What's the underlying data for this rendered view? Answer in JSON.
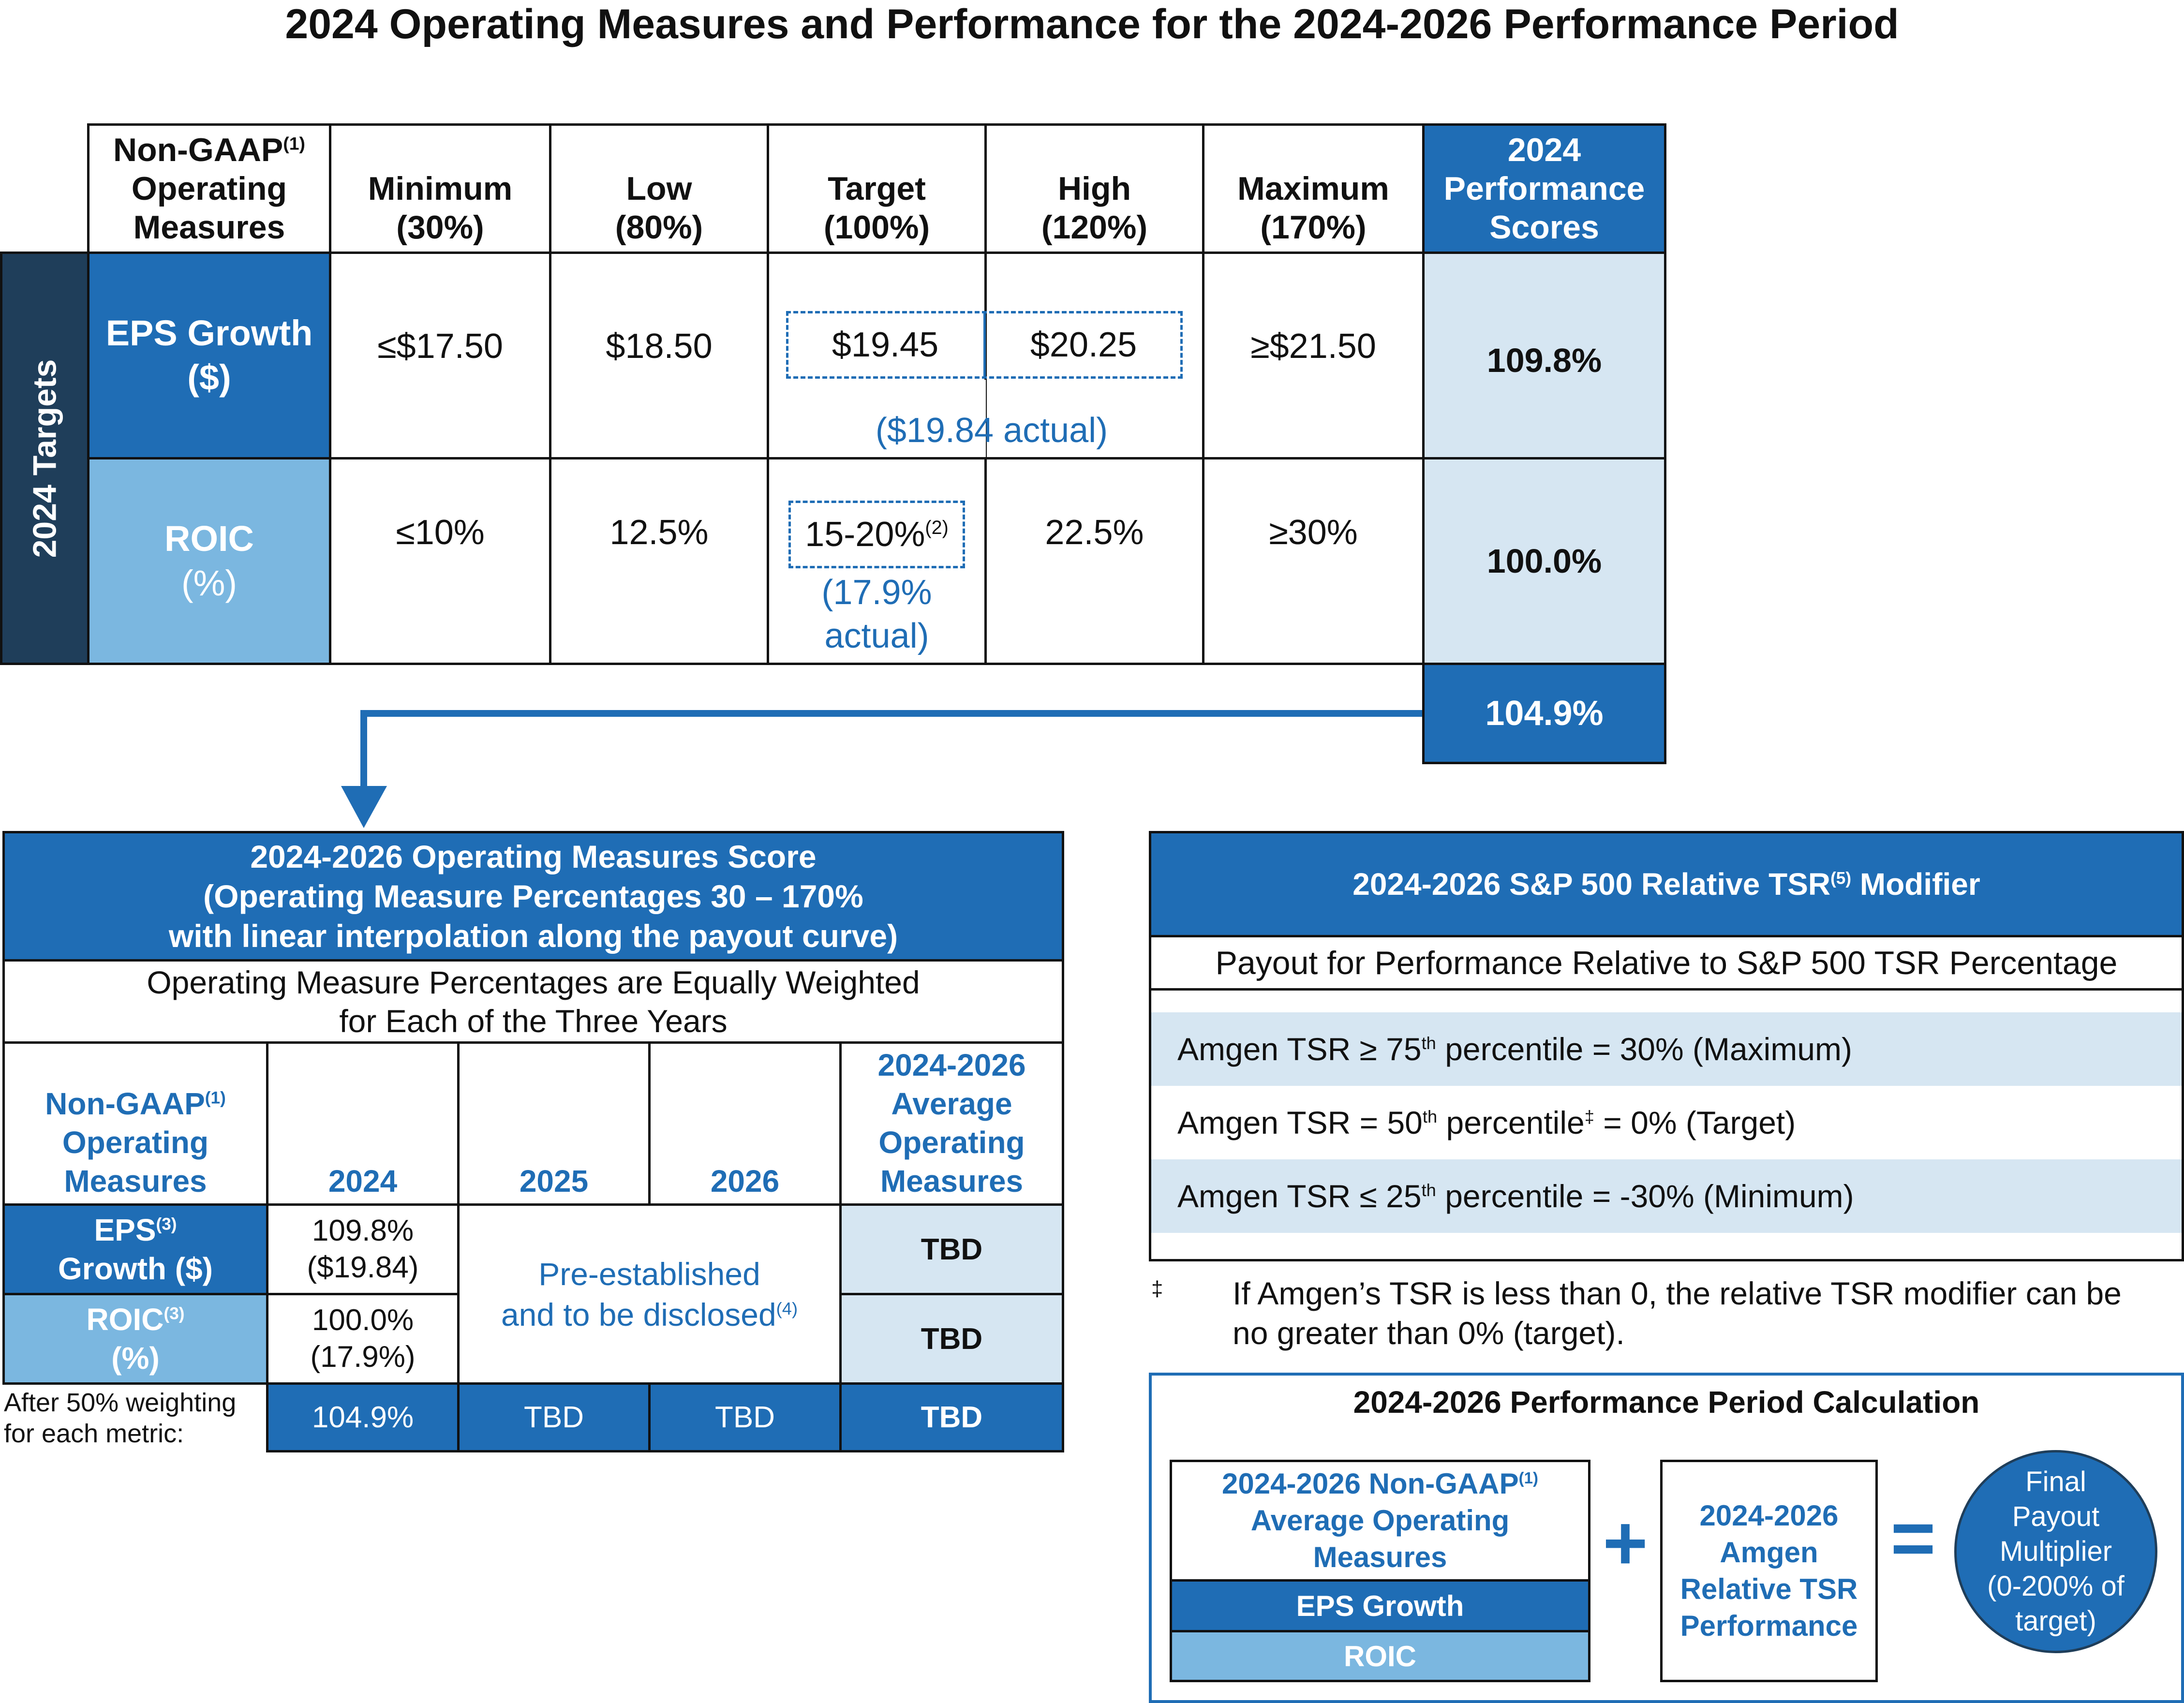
{
  "title": "2024 Operating Measures and Performance for the 2024-2026 Performance Period",
  "top_table": {
    "side_label": "2024 Targets",
    "headers": {
      "measures": "Non-GAAP",
      "measures_sup": "(1)",
      "measures_line2": "Operating",
      "measures_line3": "Measures",
      "minimum": "Minimum",
      "minimum_pct": "(30%)",
      "low": "Low",
      "low_pct": "(80%)",
      "target": "Target",
      "target_pct": "(100%)",
      "high": "High",
      "high_pct": "(120%)",
      "maximum": "Maximum",
      "maximum_pct": "(170%)",
      "scores_line1": "2024",
      "scores_line2": "Performance",
      "scores_line3": "Scores"
    },
    "eps": {
      "label_line1": "EPS Growth",
      "label_line2": "($)",
      "minimum": "≤$17.50",
      "low": "$18.50",
      "target": "$19.45",
      "high": "$20.25",
      "maximum": "≥$21.50",
      "actual_note": "($19.84 actual)",
      "score": "109.8%"
    },
    "roic": {
      "label_line1": "ROIC",
      "label_line2": "(%)",
      "minimum": "≤10%",
      "low": "12.5%",
      "target": "15-20%",
      "target_sup": "(2)",
      "high": "22.5%",
      "maximum": "≥30%",
      "actual_note_line1": "(17.9%",
      "actual_note_line2": "actual)",
      "score": "100.0%"
    },
    "combined_score": "104.9%"
  },
  "ops_table": {
    "title_line1": "2024-2026 Operating Measures Score",
    "title_line2": "(Operating Measure Percentages 30 – 170%",
    "title_line3": "with linear interpolation along the payout curve)",
    "subtitle_line1": "Operating Measure Percentages are Equally Weighted",
    "subtitle_line2": "for Each of the Three Years",
    "col_measures_line1": "Non-GAAP",
    "col_measures_sup": "(1)",
    "col_measures_line2": "Operating",
    "col_measures_line3": "Measures",
    "col_2024": "2024",
    "col_2025": "2025",
    "col_2026": "2026",
    "col_avg_line1": "2024-2026",
    "col_avg_line2": "Average",
    "col_avg_line3": "Operating",
    "col_avg_line4": "Measures",
    "eps_label_line1": "EPS",
    "eps_label_sup": "(3)",
    "eps_label_line2": "Growth ($)",
    "eps_2024_line1": "109.8%",
    "eps_2024_line2": "($19.84)",
    "roic_label_line1": "ROIC",
    "roic_label_sup": "(3)",
    "roic_label_line2": "(%)",
    "roic_2024_line1": "100.0%",
    "roic_2024_line2": "(17.9%)",
    "pre_line1": "Pre-established",
    "pre_line2": "and to be disclosed",
    "pre_sup": "(4)",
    "eps_avg": "TBD",
    "roic_avg": "TBD",
    "footer_label_line1": "After 50% weighting",
    "footer_label_line2": "for each metric:",
    "footer_2024": "104.9%",
    "footer_2025": "TBD",
    "footer_2026": "TBD",
    "footer_avg": "TBD"
  },
  "tsr_panel": {
    "title": "2024-2026 S&P 500 Relative TSR",
    "title_sup": "(5)",
    "title_end": " Modifier",
    "subtitle": "Payout for Performance Relative to S&P 500 TSR Percentage",
    "row1_a": "Amgen TSR ≥ 75",
    "row1_sup": "th",
    "row1_b": " percentile = 30% (Maximum)",
    "row2_a": "Amgen TSR = 50",
    "row2_sup": "th",
    "row2_b": " percentile",
    "row2_sup2": "‡",
    "row2_c": " = 0% (Target)",
    "row3_a": "Amgen TSR ≤ 25",
    "row3_sup": "th",
    "row3_b": " percentile = -30% (Minimum)"
  },
  "footnote": {
    "mark": "‡",
    "line1": "If Amgen’s TSR is less than 0, the relative TSR modifier can be",
    "line2": "no greater than 0% (target)."
  },
  "calc_panel": {
    "title": "2024-2026 Performance Period Calculation",
    "box1_line1": "2024-2026 Non-GAAP",
    "box1_sup": "(1)",
    "box1_line2": "Average Operating",
    "box1_line3": "Measures",
    "box1_eps": "EPS Growth",
    "box1_roic": "ROIC",
    "plus": "+",
    "box2_line1": "2024-2026",
    "box2_line2": "Amgen",
    "box2_line3": "Relative TSR",
    "box2_line4": "Performance",
    "equals": "=",
    "circle_line1": "Final",
    "circle_line2": "Payout",
    "circle_line3": "Multiplier",
    "circle_line4": "(0-200% of",
    "circle_line5": "target)"
  }
}
